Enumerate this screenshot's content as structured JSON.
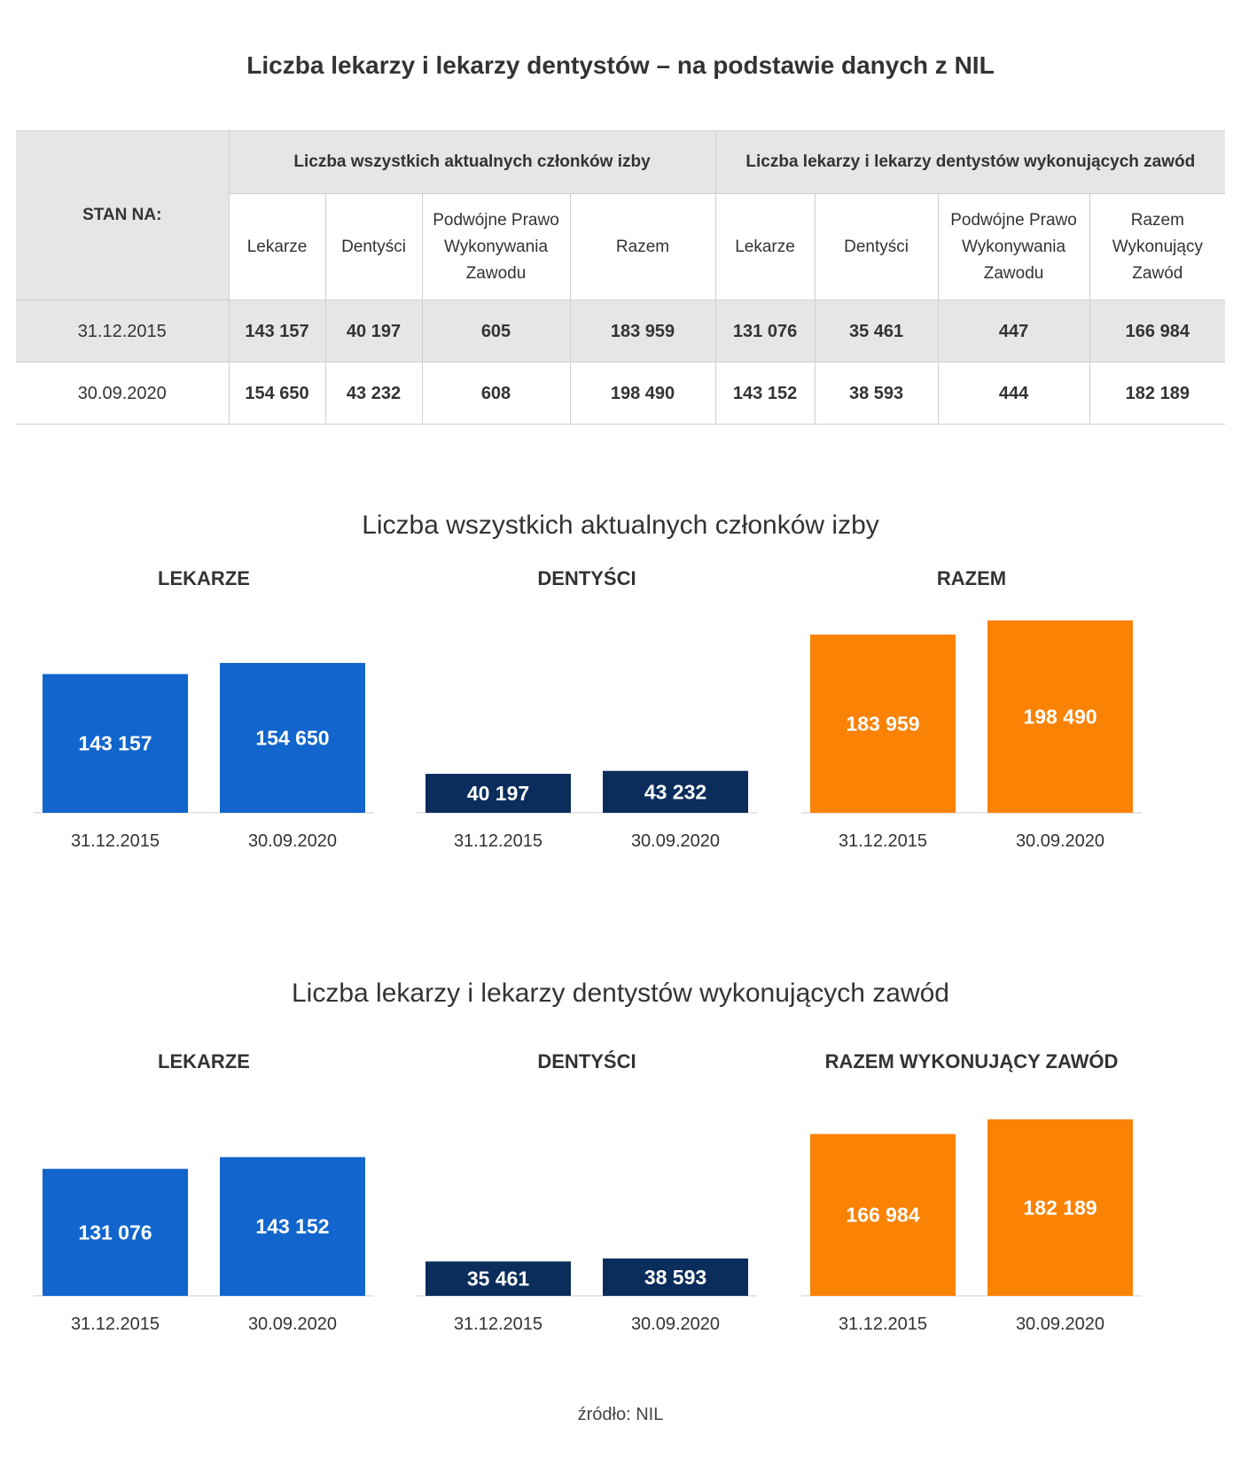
{
  "title": "Liczba lekarzy i lekarzy dentystów – na podstawie danych z NIL",
  "table": {
    "corner_label": "STAN NA:",
    "groups": [
      "Liczba wszystkich aktualnych członków izby",
      "Liczba lekarzy i lekarzy dentystów wykonujących zawód"
    ],
    "columns": [
      [
        "Lekarze"
      ],
      [
        "Dentyści"
      ],
      [
        "Podwójne Prawo",
        "Wykonywania",
        "Zawodu"
      ],
      [
        "Razem"
      ],
      [
        "Lekarze"
      ],
      [
        "Dentyści"
      ],
      [
        "Podwójne Prawo",
        "Wykonywania",
        "Zawodu"
      ],
      [
        "Razem",
        "Wykonujący",
        "Zawód"
      ]
    ],
    "rows": [
      {
        "date": "31.12.2015",
        "values": [
          "143 157",
          "40 197",
          "605",
          "183 959",
          "131 076",
          "35 461",
          "447",
          "166 984"
        ]
      },
      {
        "date": "30.09.2020",
        "values": [
          "154 650",
          "43 232",
          "608",
          "198 490",
          "143 152",
          "38 593",
          "444",
          "182 189"
        ]
      }
    ]
  },
  "chart_data": [
    {
      "type": "bar",
      "title": "Liczba wszystkich aktualnych członków izby",
      "categories": [
        "31.12.2015",
        "30.09.2020"
      ],
      "groups": [
        {
          "name": "LEKARZE",
          "color": "#1165cc",
          "values": [
            143157,
            154650
          ],
          "labels": [
            "143 157",
            "154 650"
          ]
        },
        {
          "name": "DENTYŚCI",
          "color": "#0b2d5b",
          "values": [
            40197,
            43232
          ],
          "labels": [
            "40 197",
            "43 232"
          ]
        },
        {
          "name": "RAZEM",
          "color": "#fa8205",
          "values": [
            183959,
            198490
          ],
          "labels": [
            "183 959",
            "198 490"
          ]
        }
      ]
    },
    {
      "type": "bar",
      "title": "Liczba lekarzy i lekarzy dentystów wykonujących zawód",
      "categories": [
        "31.12.2015",
        "30.09.2020"
      ],
      "groups": [
        {
          "name": "LEKARZE",
          "color": "#1165cc",
          "values": [
            131076,
            143152
          ],
          "labels": [
            "131 076",
            "143 152"
          ]
        },
        {
          "name": "DENTYŚCI",
          "color": "#0b2d5b",
          "values": [
            35461,
            38593
          ],
          "labels": [
            "35 461",
            "38 593"
          ]
        },
        {
          "name": "RAZEM WYKONUJĄCY ZAWÓD",
          "color": "#fa8205",
          "values": [
            166984,
            182189
          ],
          "labels": [
            "166 984",
            "182 189"
          ]
        }
      ]
    }
  ],
  "source": "źródło: NIL"
}
